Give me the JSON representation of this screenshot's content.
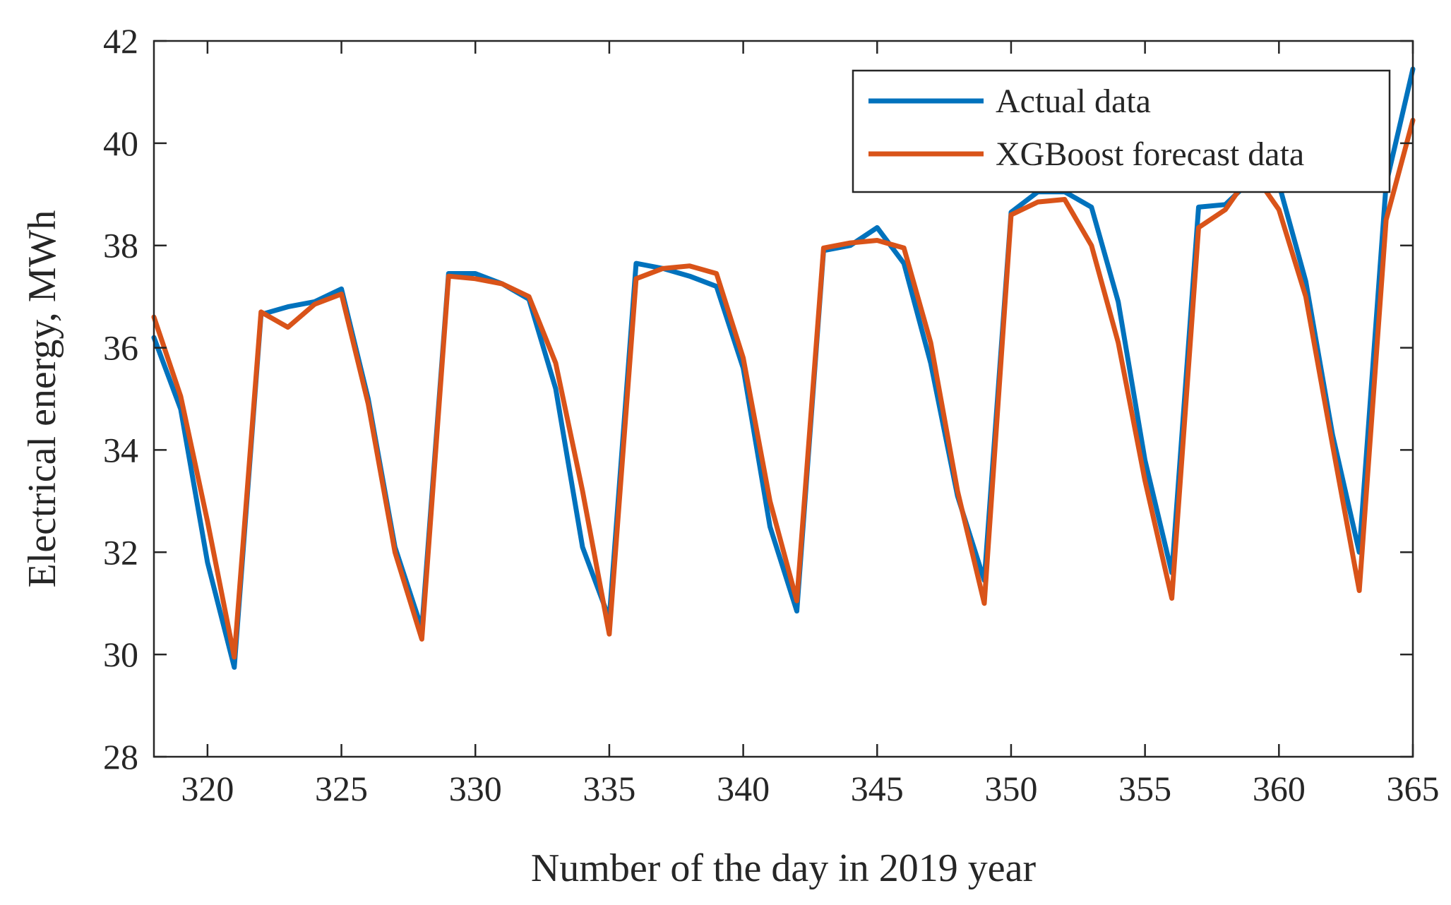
{
  "chart_data": {
    "type": "line",
    "title": "",
    "xlabel": "Number of the day in 2019 year",
    "ylabel": "Electrical energy, MWh",
    "xlim": [
      318,
      365
    ],
    "ylim": [
      28,
      42
    ],
    "xticks": [
      320,
      325,
      330,
      335,
      340,
      345,
      350,
      355,
      360,
      365
    ],
    "yticks": [
      28,
      30,
      32,
      34,
      36,
      38,
      40,
      42
    ],
    "legend_position": "top-right",
    "x": [
      318,
      319,
      320,
      321,
      322,
      323,
      324,
      325,
      326,
      327,
      328,
      329,
      330,
      331,
      332,
      333,
      334,
      335,
      336,
      337,
      338,
      339,
      340,
      341,
      342,
      343,
      344,
      345,
      346,
      347,
      348,
      349,
      350,
      351,
      352,
      353,
      354,
      355,
      356,
      357,
      358,
      359,
      360,
      361,
      362,
      363,
      364,
      365
    ],
    "series": [
      {
        "name": "Actual data",
        "color": "#0072BD",
        "values": [
          36.2,
          34.8,
          31.8,
          29.75,
          36.65,
          36.8,
          36.9,
          37.15,
          35.0,
          32.1,
          30.5,
          37.45,
          37.45,
          37.25,
          36.95,
          35.2,
          32.1,
          30.7,
          37.65,
          37.55,
          37.4,
          37.2,
          35.6,
          32.5,
          30.85,
          37.9,
          38.0,
          38.35,
          37.65,
          35.7,
          33.1,
          31.45,
          38.65,
          39.05,
          39.05,
          38.75,
          36.9,
          33.8,
          31.6,
          38.75,
          38.8,
          39.3,
          39.2,
          37.3,
          34.3,
          32.0,
          39.2,
          41.45
        ]
      },
      {
        "name": "XGBoost forecast data",
        "color": "#D95319",
        "values": [
          36.6,
          35.05,
          32.6,
          29.95,
          36.7,
          36.4,
          36.85,
          37.05,
          34.9,
          32.0,
          30.3,
          37.4,
          37.35,
          37.25,
          37.0,
          35.7,
          33.2,
          30.4,
          37.35,
          37.55,
          37.6,
          37.45,
          35.8,
          33.0,
          31.05,
          37.95,
          38.05,
          38.1,
          37.95,
          36.1,
          33.2,
          31.0,
          38.6,
          38.85,
          38.9,
          38.0,
          36.1,
          33.4,
          31.1,
          38.35,
          38.7,
          39.45,
          38.7,
          37.0,
          34.1,
          31.25,
          38.5,
          40.45
        ]
      }
    ]
  }
}
